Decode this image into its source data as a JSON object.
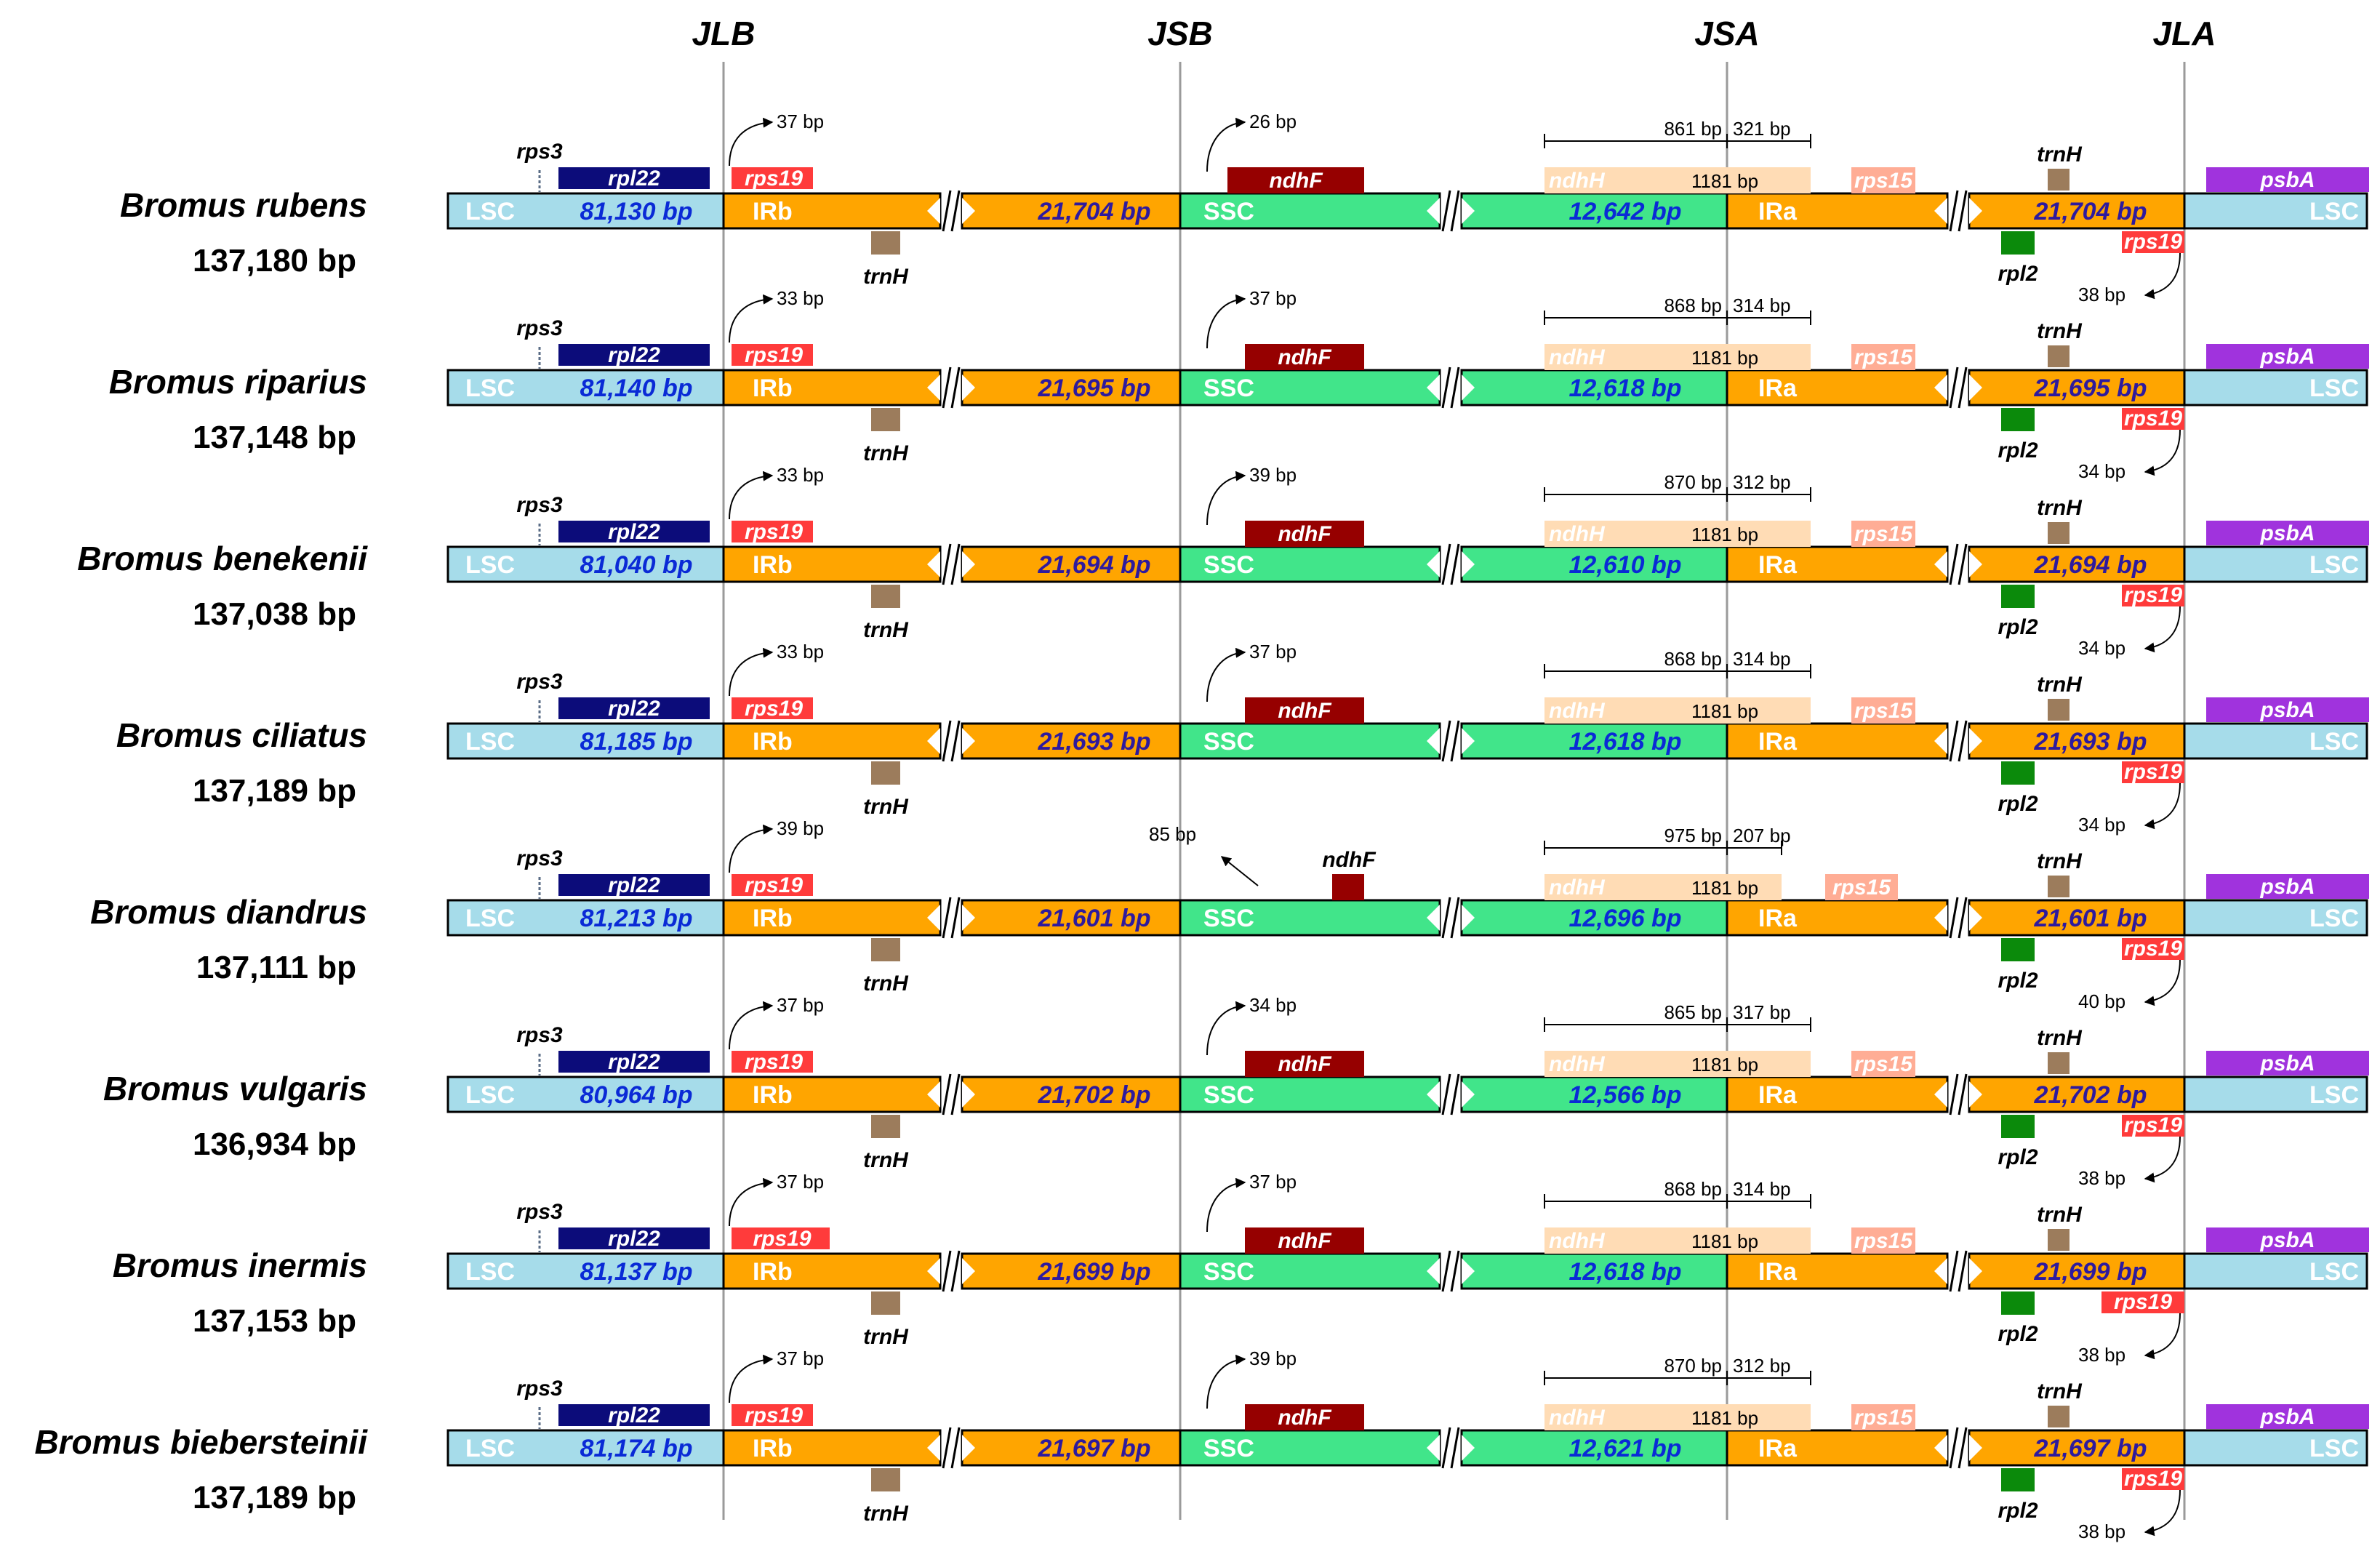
{
  "junctions": [
    "JLB",
    "JSB",
    "JSA",
    "JLA"
  ],
  "regions": {
    "lsc": "LSC",
    "irb": "IRb",
    "ssc": "SSC",
    "ira": "IRa"
  },
  "genes": {
    "rps3": "rps3",
    "rpl22": "rpl22",
    "rps19": "rps19",
    "trnH": "trnH",
    "ndhF": "ndhF",
    "ndhH": "ndhH",
    "rps15": "rps15",
    "rpl2": "rpl2",
    "psbA": "psbA",
    "ndhH_len": "1181 bp"
  },
  "colors": {
    "lsc": "#a6dcea",
    "ir": "#ffa500",
    "ssc": "#41e58a",
    "rpl22": "#0c0c7a",
    "rps19": "#ff3b3b",
    "ndhF": "#960000",
    "ndhH": "#ffdcb5",
    "rps15": "#ffad95",
    "trnH": "#9c7c5c",
    "rpl2": "#0b8a0b",
    "psbA": "#a033dd",
    "lsc_len": "#0a2ad6",
    "ir_len": "#2e1a9e"
  },
  "species": [
    {
      "name": "Bromus rubens",
      "total": "137,180 bp",
      "lsc": "81,130 bp",
      "irb": "21,704 bp",
      "ssc": "12,642 bp",
      "ira": "21,704 bp",
      "jlb": "37 bp",
      "jsb": "26 bp",
      "ndhH_left": "861 bp",
      "ndhH_right": "321 bp",
      "jla": "38 bp"
    },
    {
      "name": "Bromus riparius",
      "total": "137,148 bp",
      "lsc": "81,140 bp",
      "irb": "21,695 bp",
      "ssc": "12,618 bp",
      "ira": "21,695 bp",
      "jlb": "33 bp",
      "jsb": "37 bp",
      "ndhH_left": "868 bp",
      "ndhH_right": "314 bp",
      "jla": "34 bp"
    },
    {
      "name": "Bromus benekenii",
      "total": "137,038 bp",
      "lsc": "81,040 bp",
      "irb": "21,694 bp",
      "ssc": "12,610 bp",
      "ira": "21,694 bp",
      "jlb": "33 bp",
      "jsb": "39 bp",
      "ndhH_left": "870 bp",
      "ndhH_right": "312 bp",
      "jla": "34 bp"
    },
    {
      "name": "Bromus ciliatus",
      "total": "137,189 bp",
      "lsc": "81,185 bp",
      "irb": "21,693 bp",
      "ssc": "12,618 bp",
      "ira": "21,693 bp",
      "jlb": "33 bp",
      "jsb": "37 bp",
      "ndhH_left": "868 bp",
      "ndhH_right": "314 bp",
      "jla": "34 bp"
    },
    {
      "name": "Bromus diandrus",
      "total": "137,111 bp",
      "lsc": "81,213 bp",
      "irb": "21,601 bp",
      "ssc": "12,696 bp",
      "ira": "21,601 bp",
      "jlb": "39 bp",
      "jsb": "85 bp",
      "ndhH_left": "975 bp",
      "ndhH_right": "207 bp",
      "jla": "40 bp"
    },
    {
      "name": "Bromus vulgaris",
      "total": "136,934 bp",
      "lsc": "80,964 bp",
      "irb": "21,702 bp",
      "ssc": "12,566 bp",
      "ira": "21,702 bp",
      "jlb": "37 bp",
      "jsb": "34 bp",
      "ndhH_left": "865 bp",
      "ndhH_right": "317 bp",
      "jla": "38 bp"
    },
    {
      "name": "Bromus inermis",
      "total": "137,153 bp",
      "lsc": "81,137 bp",
      "irb": "21,699 bp",
      "ssc": "12,618 bp",
      "ira": "21,699 bp",
      "jlb": "37 bp",
      "jsb": "37 bp",
      "ndhH_left": "868 bp",
      "ndhH_right": "314 bp",
      "jla": "38 bp"
    },
    {
      "name": "Bromus biebersteinii",
      "total": "137,189 bp",
      "lsc": "81,174 bp",
      "irb": "21,697 bp",
      "ssc": "12,621 bp",
      "ira": "21,697 bp",
      "jlb": "37 bp",
      "jsb": "39 bp",
      "ndhH_left": "870 bp",
      "ndhH_right": "312 bp",
      "jla": "38 bp"
    }
  ]
}
